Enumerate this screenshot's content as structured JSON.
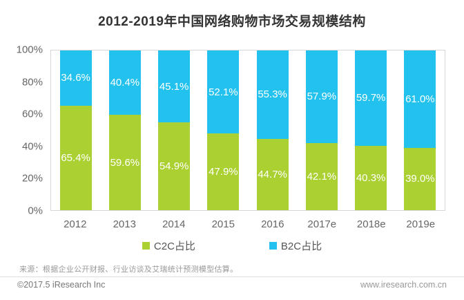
{
  "title": "2012-2019年中国网络购物市场交易规模结构",
  "chart_data": {
    "type": "bar",
    "stacked": true,
    "title": "2012-2019年中国网络购物市场交易规模结构",
    "categories": [
      "2012",
      "2013",
      "2014",
      "2015",
      "2016",
      "2017e",
      "2018e",
      "2019e"
    ],
    "series": [
      {
        "name": "C2C占比",
        "color": "#abd032",
        "values": [
          65.4,
          59.6,
          54.9,
          47.9,
          44.7,
          42.1,
          40.3,
          39.0
        ]
      },
      {
        "name": "B2C占比",
        "color": "#23c2ee",
        "values": [
          34.6,
          40.4,
          45.1,
          52.1,
          55.3,
          57.9,
          59.7,
          61.0
        ]
      }
    ],
    "xlabel": "",
    "ylabel": "",
    "ylim": [
      0,
      100
    ],
    "yticks": [
      "100%",
      "80%",
      "60%",
      "40%",
      "20%",
      "0%"
    ],
    "value_suffix": "%",
    "grid": false,
    "legend_position": "bottom"
  },
  "legend": {
    "items": [
      {
        "label": "C2C占比",
        "color": "#abd032"
      },
      {
        "label": "B2C占比",
        "color": "#23c2ee"
      }
    ]
  },
  "footer": {
    "source_note": "来源：根据企业公开财报、行业访谈及艾瑞统计预测模型估算。",
    "copyright": "©2017.5 iResearch Inc",
    "website": "www.iresearch.com.cn"
  },
  "colors": {
    "c2c_green": "#abd032",
    "b2c_blue": "#23c2ee",
    "title_text": "#333333",
    "axis_text": "#666666",
    "bar_value_text": "#ffffff",
    "plot_border": "#d6d6d6"
  }
}
